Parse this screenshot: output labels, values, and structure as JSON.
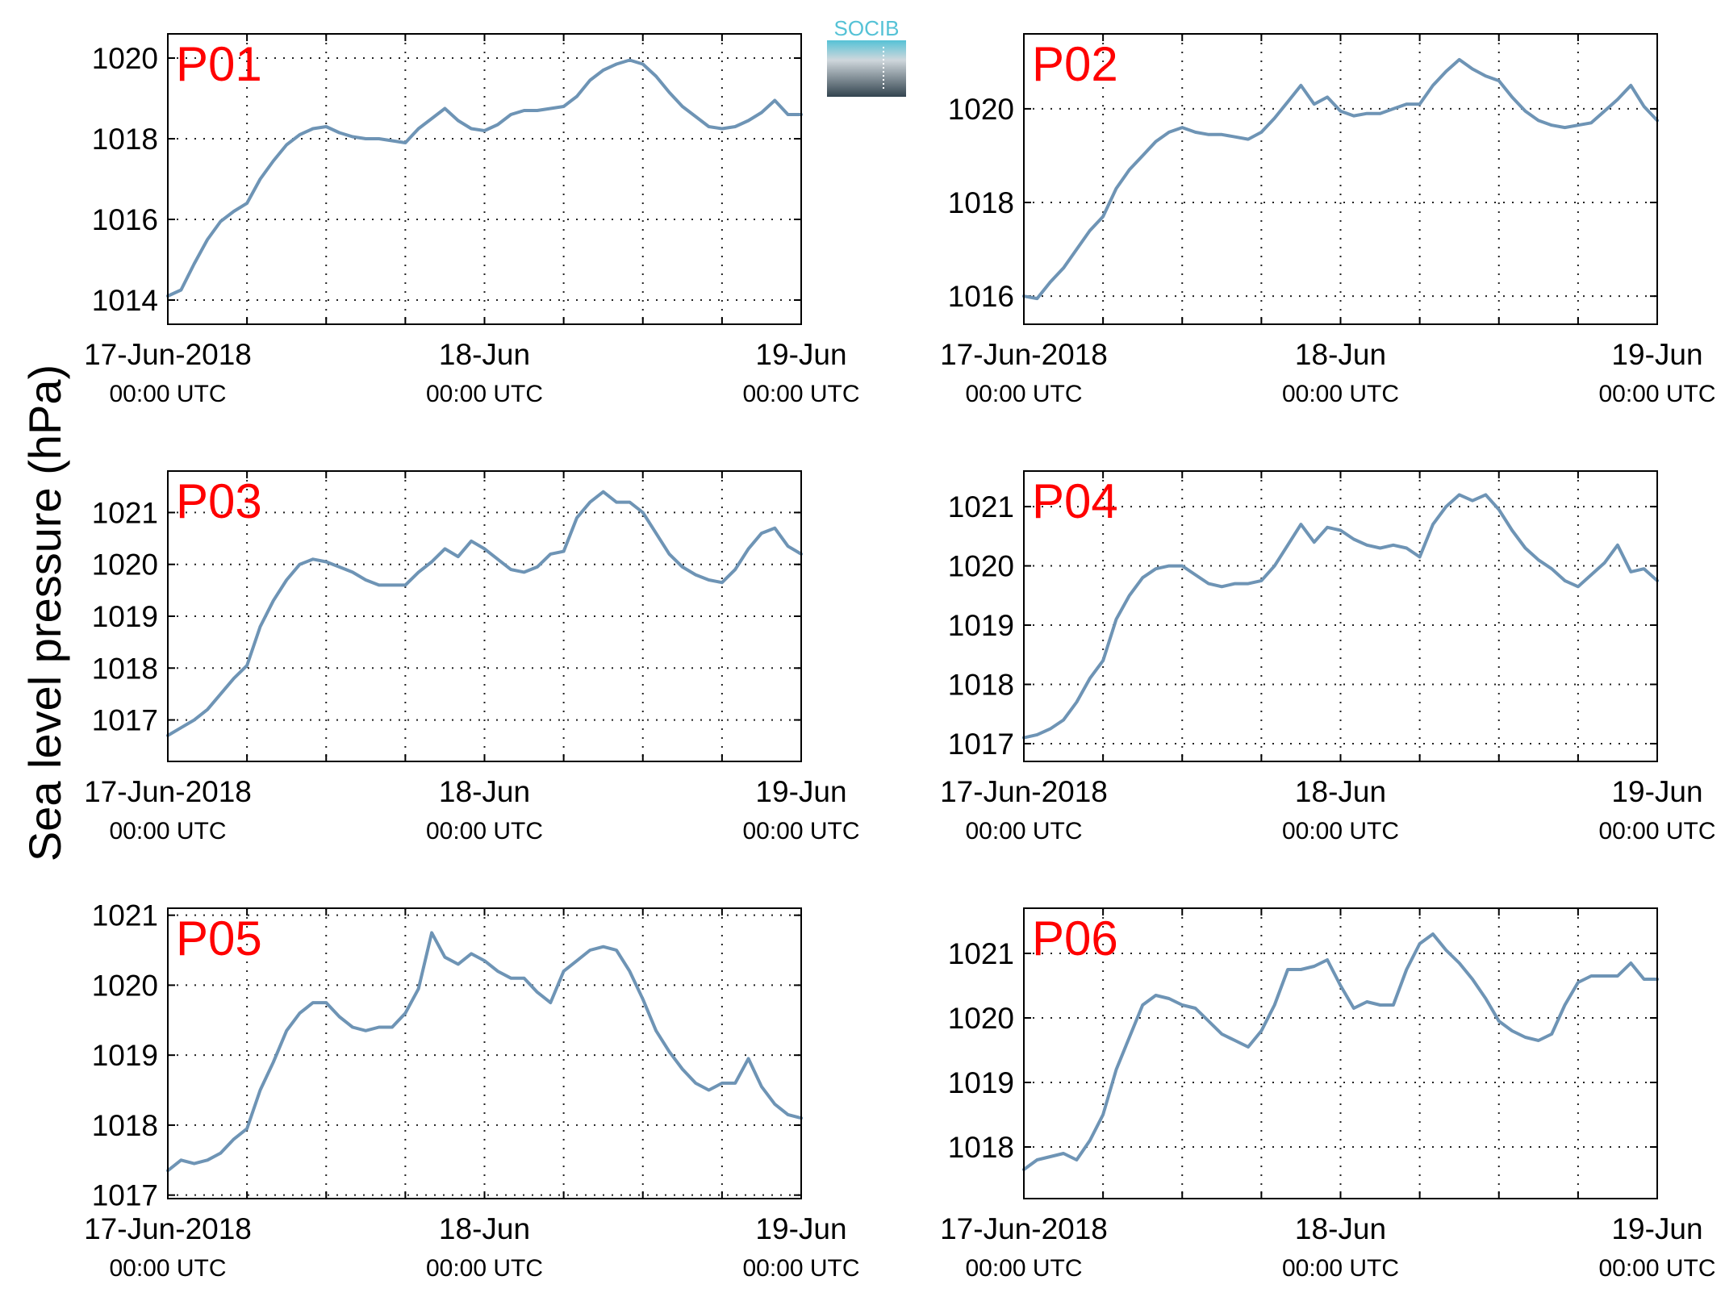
{
  "figure": {
    "ylabel": "Sea level pressure (hPa)",
    "logo_text": "SOCIB",
    "colors": {
      "line": "#6e94b5",
      "title": "#ff0000",
      "logo_top": "#55c2d6",
      "logo_bottom": "#33444f"
    }
  },
  "chart_data": [
    {
      "type": "line",
      "title": "P01",
      "ylabel": "Sea level pressure (hPa)",
      "xlim": [
        0,
        48
      ],
      "ylim": [
        1013.4,
        1020.6
      ],
      "yticks": [
        1014,
        1016,
        1018,
        1020
      ],
      "xticks": [
        {
          "value": 0,
          "label": "17-Jun-2018",
          "sub": "00:00 UTC"
        },
        {
          "value": 24,
          "label": "18-Jun",
          "sub": "00:00 UTC"
        },
        {
          "value": 48,
          "label": "19-Jun",
          "sub": "00:00 UTC"
        }
      ],
      "xgrid": [
        6,
        12,
        18,
        24,
        30,
        36,
        42
      ],
      "series": [
        {
          "x": [
            0,
            1,
            2,
            3,
            4,
            5,
            6,
            7,
            8,
            9,
            10,
            11,
            12,
            13,
            14,
            15,
            16,
            17,
            18,
            19,
            20,
            21,
            22,
            23,
            24,
            25,
            26,
            27,
            28,
            29,
            30,
            31,
            32,
            33,
            34,
            35,
            36,
            37,
            38,
            39,
            40,
            41,
            42,
            43,
            44,
            45,
            46,
            47,
            48
          ],
          "y": [
            1014.1,
            1014.25,
            1014.9,
            1015.5,
            1015.95,
            1016.2,
            1016.4,
            1017.0,
            1017.45,
            1017.85,
            1018.1,
            1018.25,
            1018.3,
            1018.15,
            1018.05,
            1018.0,
            1018.0,
            1017.95,
            1017.9,
            1018.25,
            1018.5,
            1018.75,
            1018.45,
            1018.25,
            1018.2,
            1018.35,
            1018.6,
            1018.7,
            1018.7,
            1018.75,
            1018.8,
            1019.05,
            1019.45,
            1019.7,
            1019.85,
            1019.95,
            1019.85,
            1019.55,
            1019.15,
            1018.8,
            1018.55,
            1018.3,
            1018.25,
            1018.3,
            1018.45,
            1018.65,
            1018.95,
            1018.6,
            1018.6
          ]
        }
      ]
    },
    {
      "type": "line",
      "title": "P02",
      "ylabel": "Sea level pressure (hPa)",
      "xlim": [
        0,
        48
      ],
      "ylim": [
        1015.4,
        1021.6
      ],
      "yticks": [
        1016,
        1018,
        1020
      ],
      "xticks": [
        {
          "value": 0,
          "label": "17-Jun-2018",
          "sub": "00:00 UTC"
        },
        {
          "value": 24,
          "label": "18-Jun",
          "sub": "00:00 UTC"
        },
        {
          "value": 48,
          "label": "19-Jun",
          "sub": "00:00 UTC"
        }
      ],
      "xgrid": [
        6,
        12,
        18,
        24,
        30,
        36,
        42
      ],
      "series": [
        {
          "x": [
            0,
            1,
            2,
            3,
            4,
            5,
            6,
            7,
            8,
            9,
            10,
            11,
            12,
            13,
            14,
            15,
            16,
            17,
            18,
            19,
            20,
            21,
            22,
            23,
            24,
            25,
            26,
            27,
            28,
            29,
            30,
            31,
            32,
            33,
            34,
            35,
            36,
            37,
            38,
            39,
            40,
            41,
            42,
            43,
            44,
            45,
            46,
            47,
            48
          ],
          "y": [
            1016.0,
            1015.95,
            1016.3,
            1016.6,
            1017.0,
            1017.4,
            1017.7,
            1018.3,
            1018.7,
            1019.0,
            1019.3,
            1019.5,
            1019.6,
            1019.5,
            1019.45,
            1019.45,
            1019.4,
            1019.35,
            1019.5,
            1019.8,
            1020.15,
            1020.5,
            1020.1,
            1020.25,
            1019.95,
            1019.85,
            1019.9,
            1019.9,
            1020.0,
            1020.1,
            1020.1,
            1020.5,
            1020.8,
            1021.05,
            1020.85,
            1020.7,
            1020.6,
            1020.25,
            1019.95,
            1019.75,
            1019.65,
            1019.6,
            1019.65,
            1019.7,
            1019.95,
            1020.2,
            1020.5,
            1020.05,
            1019.75
          ]
        }
      ]
    },
    {
      "type": "line",
      "title": "P03",
      "ylabel": "Sea level pressure (hPa)",
      "xlim": [
        0,
        48
      ],
      "ylim": [
        1016.2,
        1021.8
      ],
      "yticks": [
        1017,
        1018,
        1019,
        1020,
        1021
      ],
      "xticks": [
        {
          "value": 0,
          "label": "17-Jun-2018",
          "sub": "00:00 UTC"
        },
        {
          "value": 24,
          "label": "18-Jun",
          "sub": "00:00 UTC"
        },
        {
          "value": 48,
          "label": "19-Jun",
          "sub": "00:00 UTC"
        }
      ],
      "xgrid": [
        6,
        12,
        18,
        24,
        30,
        36,
        42
      ],
      "series": [
        {
          "x": [
            0,
            1,
            2,
            3,
            4,
            5,
            6,
            7,
            8,
            9,
            10,
            11,
            12,
            13,
            14,
            15,
            16,
            17,
            18,
            19,
            20,
            21,
            22,
            23,
            24,
            25,
            26,
            27,
            28,
            29,
            30,
            31,
            32,
            33,
            34,
            35,
            36,
            37,
            38,
            39,
            40,
            41,
            42,
            43,
            44,
            45,
            46,
            47,
            48
          ],
          "y": [
            1016.7,
            1016.85,
            1017.0,
            1017.2,
            1017.5,
            1017.8,
            1018.05,
            1018.8,
            1019.3,
            1019.7,
            1020.0,
            1020.1,
            1020.05,
            1019.95,
            1019.85,
            1019.7,
            1019.6,
            1019.6,
            1019.6,
            1019.85,
            1020.05,
            1020.3,
            1020.15,
            1020.45,
            1020.3,
            1020.1,
            1019.9,
            1019.85,
            1019.95,
            1020.2,
            1020.25,
            1020.9,
            1021.2,
            1021.4,
            1021.2,
            1021.2,
            1021.0,
            1020.6,
            1020.2,
            1019.95,
            1019.8,
            1019.7,
            1019.65,
            1019.9,
            1020.3,
            1020.6,
            1020.7,
            1020.35,
            1020.2
          ]
        }
      ]
    },
    {
      "type": "line",
      "title": "P04",
      "ylabel": "Sea level pressure (hPa)",
      "xlim": [
        0,
        48
      ],
      "ylim": [
        1016.7,
        1021.6
      ],
      "yticks": [
        1017,
        1018,
        1019,
        1020,
        1021
      ],
      "xticks": [
        {
          "value": 0,
          "label": "17-Jun-2018",
          "sub": "00:00 UTC"
        },
        {
          "value": 24,
          "label": "18-Jun",
          "sub": "00:00 UTC"
        },
        {
          "value": 48,
          "label": "19-Jun",
          "sub": "00:00 UTC"
        }
      ],
      "xgrid": [
        6,
        12,
        18,
        24,
        30,
        36,
        42
      ],
      "series": [
        {
          "x": [
            0,
            1,
            2,
            3,
            4,
            5,
            6,
            7,
            8,
            9,
            10,
            11,
            12,
            13,
            14,
            15,
            16,
            17,
            18,
            19,
            20,
            21,
            22,
            23,
            24,
            25,
            26,
            27,
            28,
            29,
            30,
            31,
            32,
            33,
            34,
            35,
            36,
            37,
            38,
            39,
            40,
            41,
            42,
            43,
            44,
            45,
            46,
            47,
            48
          ],
          "y": [
            1017.1,
            1017.15,
            1017.25,
            1017.4,
            1017.7,
            1018.1,
            1018.4,
            1019.1,
            1019.5,
            1019.8,
            1019.95,
            1020.0,
            1020.0,
            1019.85,
            1019.7,
            1019.65,
            1019.7,
            1019.7,
            1019.75,
            1020.0,
            1020.35,
            1020.7,
            1020.4,
            1020.65,
            1020.6,
            1020.45,
            1020.35,
            1020.3,
            1020.35,
            1020.3,
            1020.15,
            1020.7,
            1021.0,
            1021.2,
            1021.1,
            1021.2,
            1020.95,
            1020.6,
            1020.3,
            1020.1,
            1019.95,
            1019.75,
            1019.65,
            1019.85,
            1020.05,
            1020.35,
            1019.9,
            1019.95,
            1019.75
          ]
        }
      ]
    },
    {
      "type": "line",
      "title": "P05",
      "ylabel": "Sea level pressure (hPa)",
      "xlim": [
        0,
        48
      ],
      "ylim": [
        1016.95,
        1021.1
      ],
      "yticks": [
        1017,
        1018,
        1019,
        1020,
        1021
      ],
      "xticks": [
        {
          "value": 0,
          "label": "17-Jun-2018",
          "sub": "00:00 UTC"
        },
        {
          "value": 24,
          "label": "18-Jun",
          "sub": "00:00 UTC"
        },
        {
          "value": 48,
          "label": "19-Jun",
          "sub": "00:00 UTC"
        }
      ],
      "xgrid": [
        6,
        12,
        18,
        24,
        30,
        36,
        42
      ],
      "series": [
        {
          "x": [
            0,
            1,
            2,
            3,
            4,
            5,
            6,
            7,
            8,
            9,
            10,
            11,
            12,
            13,
            14,
            15,
            16,
            17,
            18,
            19,
            20,
            21,
            22,
            23,
            24,
            25,
            26,
            27,
            28,
            29,
            30,
            31,
            32,
            33,
            34,
            35,
            36,
            37,
            38,
            39,
            40,
            41,
            42,
            43,
            44,
            45,
            46,
            47,
            48
          ],
          "y": [
            1017.35,
            1017.5,
            1017.45,
            1017.5,
            1017.6,
            1017.8,
            1017.95,
            1018.5,
            1018.9,
            1019.35,
            1019.6,
            1019.75,
            1019.75,
            1019.55,
            1019.4,
            1019.35,
            1019.4,
            1019.4,
            1019.6,
            1019.95,
            1020.75,
            1020.4,
            1020.3,
            1020.45,
            1020.35,
            1020.2,
            1020.1,
            1020.1,
            1019.9,
            1019.75,
            1020.2,
            1020.35,
            1020.5,
            1020.55,
            1020.5,
            1020.2,
            1019.8,
            1019.35,
            1019.05,
            1018.8,
            1018.6,
            1018.5,
            1018.6,
            1018.6,
            1018.95,
            1018.55,
            1018.3,
            1018.15,
            1018.1
          ]
        }
      ]
    },
    {
      "type": "line",
      "title": "P06",
      "ylabel": "Sea level pressure (hPa)",
      "xlim": [
        0,
        48
      ],
      "ylim": [
        1017.2,
        1021.7
      ],
      "yticks": [
        1018,
        1019,
        1020,
        1021
      ],
      "xticks": [
        {
          "value": 0,
          "label": "17-Jun-2018",
          "sub": "00:00 UTC"
        },
        {
          "value": 24,
          "label": "18-Jun",
          "sub": "00:00 UTC"
        },
        {
          "value": 48,
          "label": "19-Jun",
          "sub": "00:00 UTC"
        }
      ],
      "xgrid": [
        6,
        12,
        18,
        24,
        30,
        36,
        42
      ],
      "series": [
        {
          "x": [
            0,
            1,
            2,
            3,
            4,
            5,
            6,
            7,
            8,
            9,
            10,
            11,
            12,
            13,
            14,
            15,
            16,
            17,
            18,
            19,
            20,
            21,
            22,
            23,
            24,
            25,
            26,
            27,
            28,
            29,
            30,
            31,
            32,
            33,
            34,
            35,
            36,
            37,
            38,
            39,
            40,
            41,
            42,
            43,
            44,
            45,
            46,
            47,
            48
          ],
          "y": [
            1017.65,
            1017.8,
            1017.85,
            1017.9,
            1017.8,
            1018.1,
            1018.5,
            1019.2,
            1019.7,
            1020.2,
            1020.35,
            1020.3,
            1020.2,
            1020.15,
            1019.95,
            1019.75,
            1019.65,
            1019.55,
            1019.8,
            1020.2,
            1020.75,
            1020.75,
            1020.8,
            1020.9,
            1020.5,
            1020.15,
            1020.25,
            1020.2,
            1020.2,
            1020.75,
            1021.15,
            1021.3,
            1021.05,
            1020.85,
            1020.6,
            1020.3,
            1019.95,
            1019.8,
            1019.7,
            1019.65,
            1019.75,
            1020.2,
            1020.55,
            1020.65,
            1020.65,
            1020.65,
            1020.85,
            1020.6,
            1020.6
          ]
        }
      ]
    }
  ]
}
